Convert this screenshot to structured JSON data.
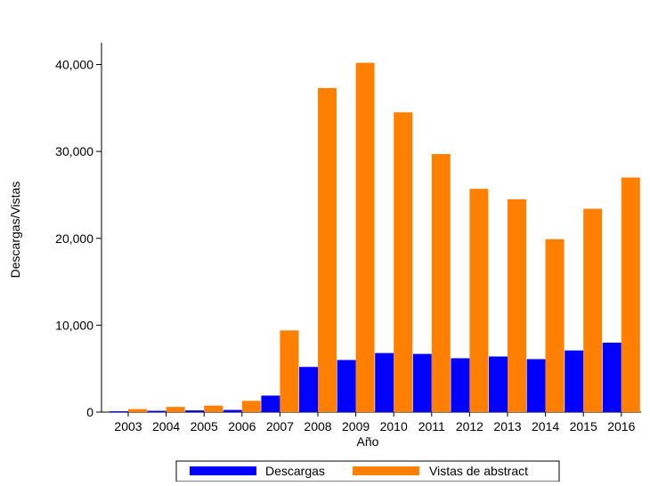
{
  "chart_data": {
    "type": "bar",
    "title": "",
    "xlabel": "Año",
    "ylabel": "Descargas/Vistas",
    "categories": [
      "2003",
      "2004",
      "2005",
      "2006",
      "2007",
      "2008",
      "2009",
      "2010",
      "2011",
      "2012",
      "2013",
      "2014",
      "2015",
      "2016"
    ],
    "series": [
      {
        "name": "Descargas",
        "color": "#0000ff",
        "values": [
          100,
          150,
          200,
          250,
          1900,
          5200,
          6000,
          6800,
          6700,
          6200,
          6400,
          6100,
          7100,
          8000
        ]
      },
      {
        "name": "Vistas de abstract",
        "color": "#ff8000",
        "values": [
          350,
          600,
          750,
          1300,
          9400,
          37300,
          40200,
          34500,
          29700,
          25700,
          24500,
          19900,
          23400,
          27000
        ]
      }
    ],
    "yticks": [
      0,
      10000,
      20000,
      30000,
      40000
    ],
    "ytick_labels": [
      "0",
      "10,000",
      "20,000",
      "30,000",
      "40,000"
    ],
    "ylim": [
      0,
      42000
    ],
    "grid": false,
    "legend_position": "bottom"
  }
}
